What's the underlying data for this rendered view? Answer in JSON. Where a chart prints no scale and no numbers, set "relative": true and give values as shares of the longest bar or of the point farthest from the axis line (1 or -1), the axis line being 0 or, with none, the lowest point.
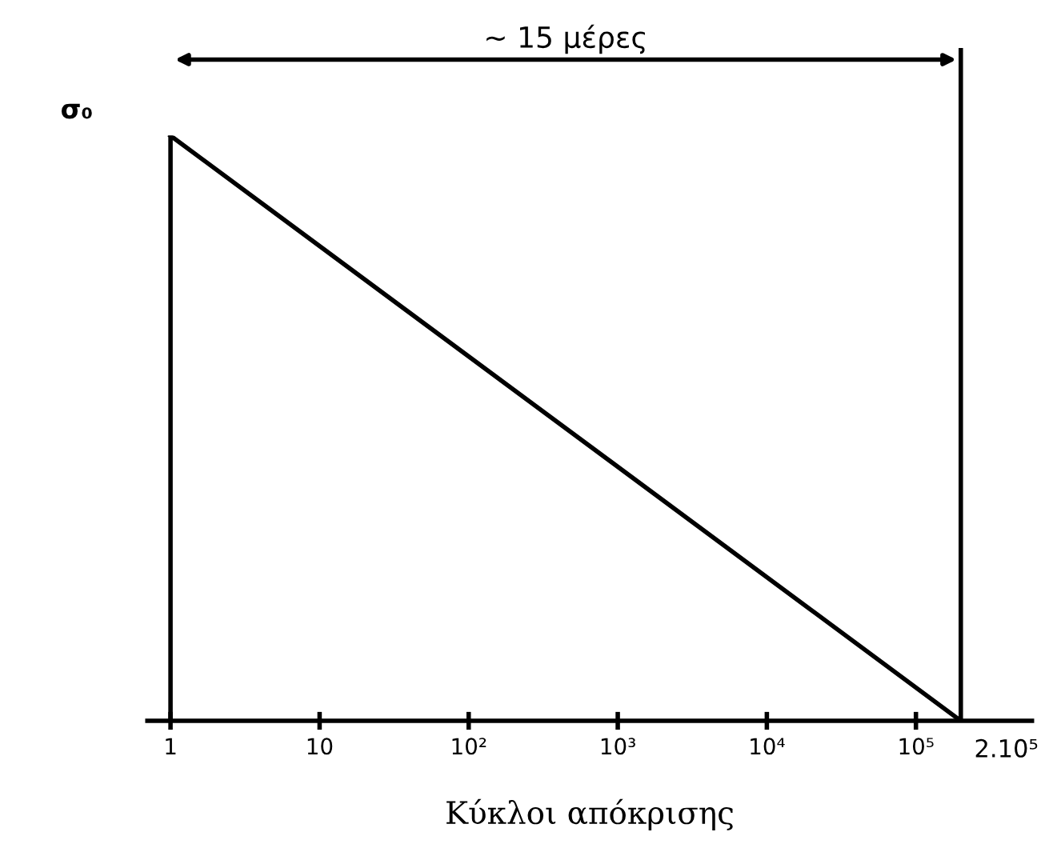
{
  "chart_data": {
    "type": "line",
    "relative": true,
    "log": "x",
    "xlabel": "Kύκλοι απόκρισης",
    "ylabel": "σ₀",
    "x": [
      1,
      200000
    ],
    "series": [
      {
        "color": "#000000",
        "values": [
          1,
          0
        ]
      }
    ],
    "xlim": [
      0.7,
      600000
    ],
    "xticks": [
      1,
      10,
      {
        "value": 100,
        "label": "10²"
      },
      {
        "value": 1000,
        "label": "10³"
      },
      {
        "value": 10000,
        "label": "10⁴"
      },
      {
        "value": 100000,
        "label": "10⁵"
      }
    ],
    "ref_lines": [
      {
        "axis": "x",
        "value": 1,
        "color": "#000000"
      },
      {
        "axis": "x",
        "value": 200000,
        "color": "#000000"
      }
    ],
    "annotations": [
      "∼ 15 μέρες",
      "2.10⁵"
    ],
    "grid": false,
    "legend": false,
    "marker": "none",
    "line_style": "solid"
  }
}
